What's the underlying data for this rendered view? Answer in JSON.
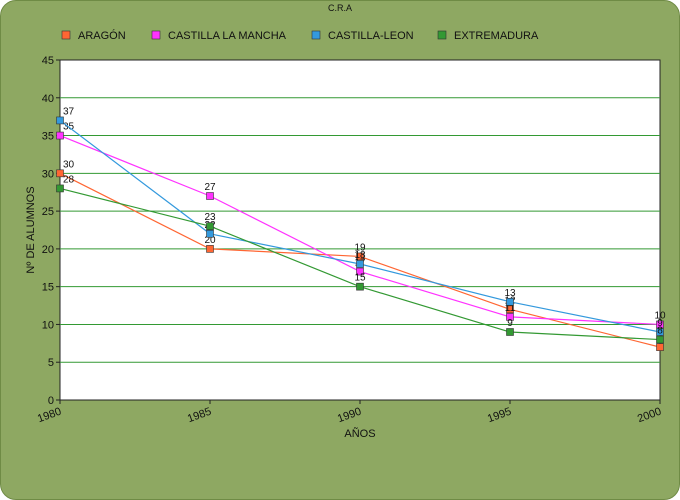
{
  "chart_data": {
    "type": "line",
    "title": "C.R.A",
    "xlabel": "AÑOS",
    "ylabel": "Nº DE ALUMNOS",
    "x": [
      1980,
      1985,
      1990,
      1995,
      2000
    ],
    "x_tick_labels": [
      "1980",
      "1985",
      "1990",
      "1995",
      "2000"
    ],
    "ylim": [
      0,
      45
    ],
    "y_ticks": [
      0,
      5,
      10,
      15,
      20,
      25,
      30,
      35,
      40,
      45
    ],
    "y_tick_labels": [
      "0",
      "5",
      "10",
      "15",
      "20",
      "25",
      "30",
      "35",
      "40",
      "45"
    ],
    "grid": "horizontal",
    "legend_position": "top",
    "series": [
      {
        "name": "ARAGÓN",
        "color": "#ff6633",
        "values": [
          30,
          20,
          19,
          12,
          7
        ],
        "labels": [
          "30",
          "20",
          "19",
          "12",
          "7"
        ]
      },
      {
        "name": "CASTILLA LA MANCHA",
        "color": "#ff33ff",
        "values": [
          35,
          27,
          17,
          11,
          10
        ],
        "labels": [
          "35",
          "27",
          "17",
          "11",
          "10"
        ]
      },
      {
        "name": "CASTILLA-LEON",
        "color": "#3399dd",
        "values": [
          37,
          22,
          18,
          13,
          9
        ],
        "labels": [
          "37",
          "22",
          "18",
          "13",
          "9"
        ]
      },
      {
        "name": "EXTREMADURA",
        "color": "#339933",
        "values": [
          28,
          23,
          15,
          9,
          8
        ],
        "labels": [
          "28",
          "23",
          "15",
          "9",
          "8"
        ]
      }
    ]
  }
}
